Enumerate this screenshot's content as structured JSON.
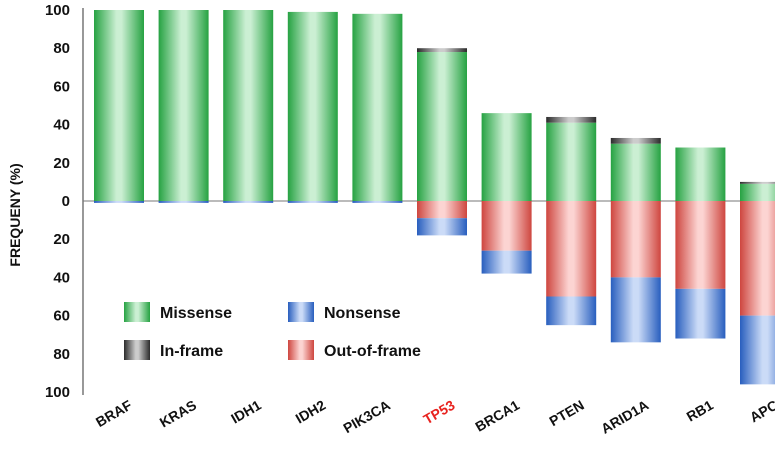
{
  "chart_data": {
    "type": "bar",
    "ylabel": "FREQUENY (%)",
    "ylim_up": [
      0,
      100
    ],
    "ylim_down": [
      0,
      100
    ],
    "yticks_up": [
      "0",
      "20",
      "40",
      "60",
      "80",
      "100"
    ],
    "yticks_down": [
      "20",
      "40",
      "60",
      "80",
      "100"
    ],
    "categories": [
      "BRAF",
      "KRAS",
      "IDH1",
      "IDH2",
      "PIK3CA",
      "TP53",
      "BRCA1",
      "PTEN",
      "ARID1A",
      "RB1",
      "APC"
    ],
    "highlighted_category": "TP53",
    "highlight_color": "#e8231f",
    "grid": false,
    "legend_position": "bottom-left",
    "series": [
      {
        "name": "Missense",
        "direction": "up",
        "color": "#2dbf4e",
        "values": [
          100,
          100,
          100,
          99,
          98,
          78,
          46,
          41,
          30,
          28,
          9
        ]
      },
      {
        "name": "In-frame",
        "direction": "up",
        "color": "#333333",
        "values": [
          0,
          0,
          0,
          0,
          0,
          2,
          0,
          3,
          3,
          0,
          1
        ]
      },
      {
        "name": "Out-of-frame",
        "direction": "down",
        "color": "#f2524a",
        "values": [
          0,
          0,
          0,
          0,
          0,
          9,
          26,
          50,
          40,
          46,
          60
        ]
      },
      {
        "name": "Nonsense",
        "direction": "down",
        "color": "#2f6fe0",
        "values": [
          1,
          1,
          1,
          1,
          1,
          9,
          12,
          15,
          34,
          26,
          36
        ]
      }
    ],
    "legend": {
      "items": [
        {
          "name": "Missense",
          "color": "#2dbf4e"
        },
        {
          "name": "Nonsense",
          "color": "#2f6fe0"
        },
        {
          "name": "In-frame",
          "color": "#333333"
        },
        {
          "name": "Out-of-frame",
          "color": "#f2524a"
        }
      ]
    }
  }
}
